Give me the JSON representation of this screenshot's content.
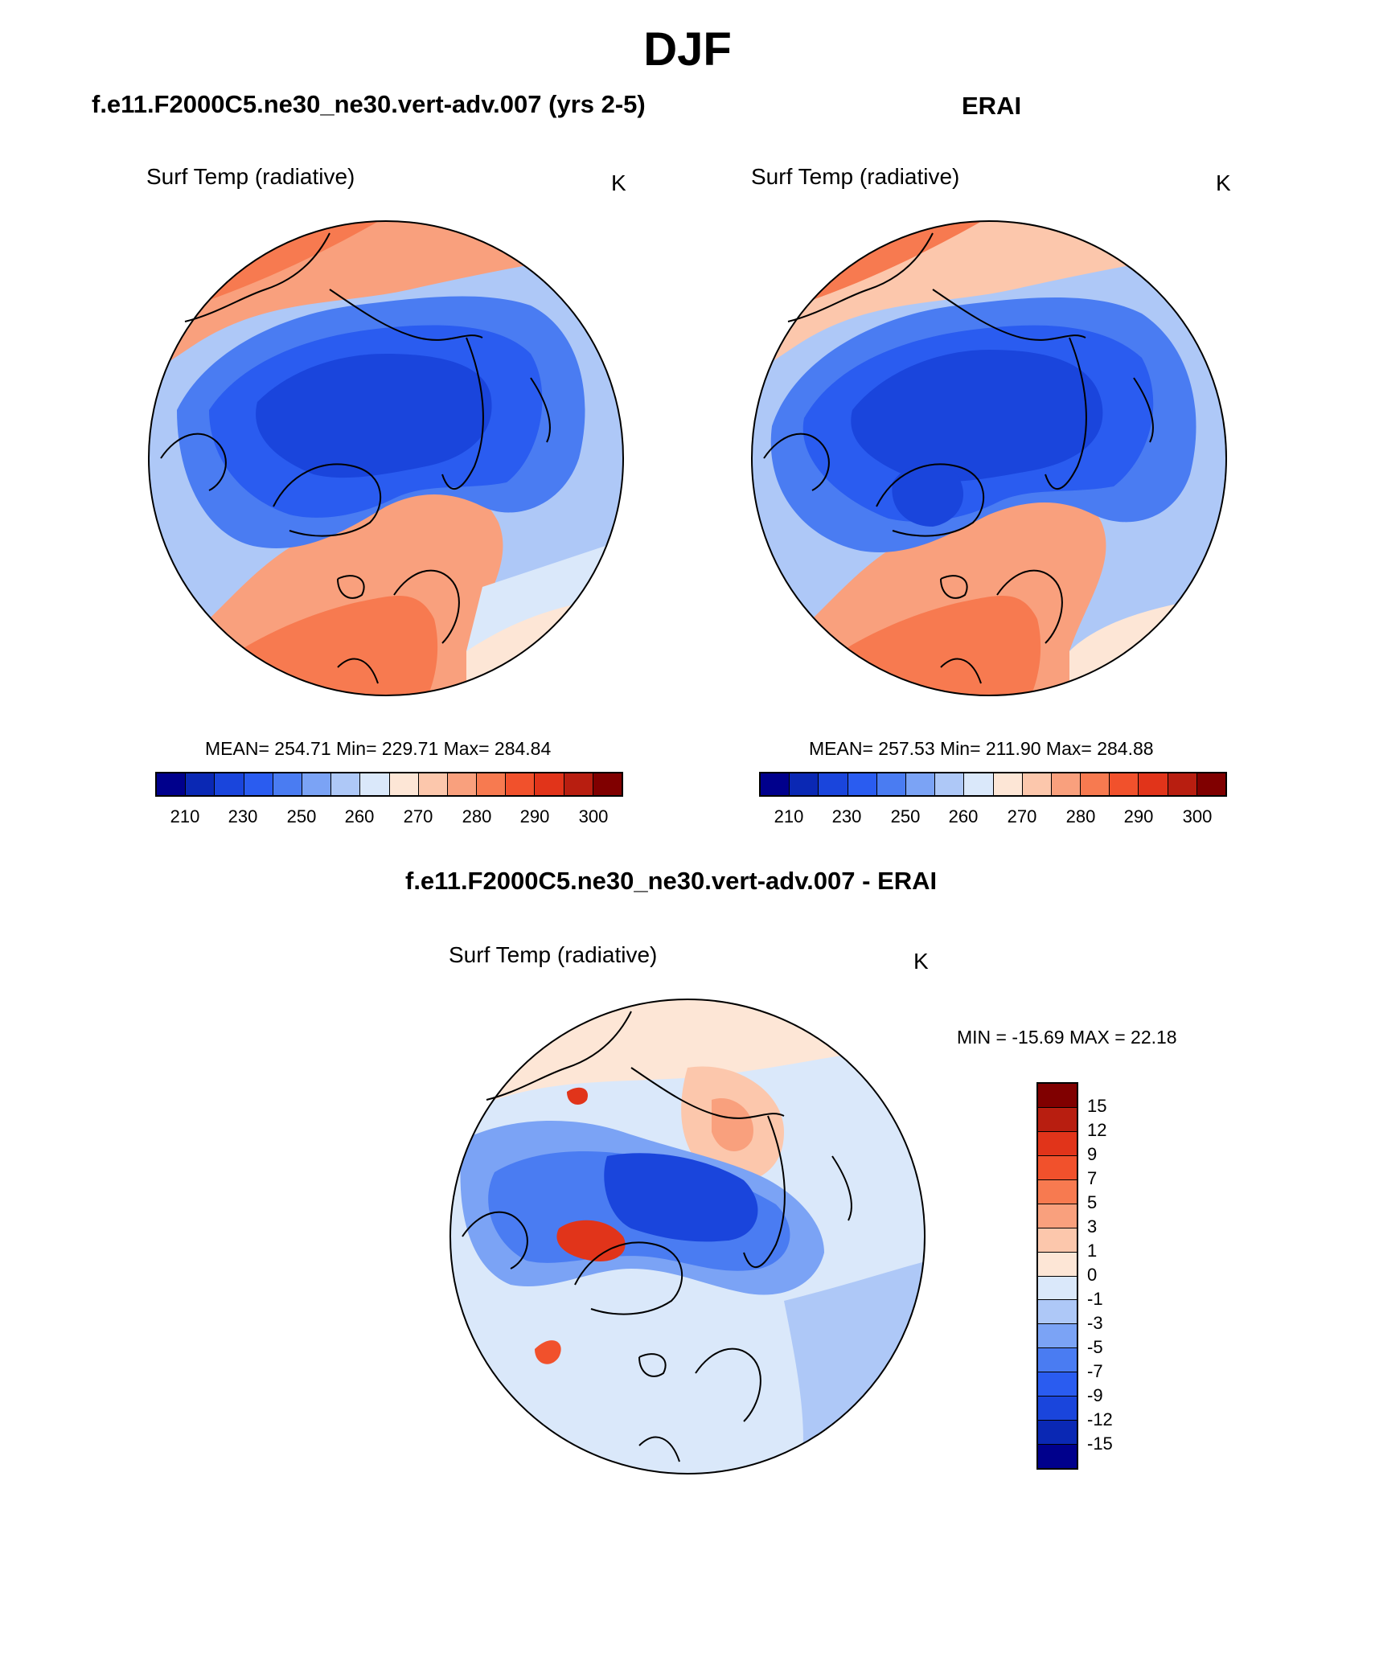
{
  "figure": {
    "title": "DJF"
  },
  "panels": {
    "model": {
      "title": "f.e11.F2000C5.ne30_ne30.vert-adv.007 (yrs 2-5)",
      "variable": "Surf Temp (radiative)",
      "units": "K",
      "stats": "MEAN= 254.71  Min= 229.71  Max= 284.84",
      "colorbar_ticks": [
        "210",
        "230",
        "250",
        "260",
        "270",
        "280",
        "290",
        "300"
      ],
      "map_description": "North polar stereographic map; cold blue over Arctic, Canada and Siberia, warm orange-red over North Atlantic and North Pacific"
    },
    "obs": {
      "title": "ERAI",
      "variable": "Surf Temp (radiative)",
      "units": "K",
      "stats": "MEAN= 257.53  Min= 211.90  Max= 284.88",
      "colorbar_ticks": [
        "210",
        "230",
        "250",
        "260",
        "270",
        "280",
        "290",
        "300"
      ]
    },
    "diff": {
      "title": "f.e11.F2000C5.ne30_ne30.vert-adv.007 - ERAI",
      "variable": "Surf Temp (radiative)",
      "units": "K",
      "stats": "MIN = -15.69 MAX =  22.18",
      "colorbar_ticks": [
        "15",
        "12",
        "9",
        "7",
        "5",
        "3",
        "1",
        "0",
        "-1",
        "-3",
        "-5",
        "-7",
        "-9",
        "-12",
        "-15"
      ]
    }
  },
  "colors": {
    "abs_scale": [
      "#00008c",
      "#0a28b4",
      "#1a45dc",
      "#2a5cf0",
      "#4a7cf2",
      "#7ba3f5",
      "#aec8f7",
      "#dae8fa",
      "#fde6d6",
      "#fcc7ac",
      "#f9a07d",
      "#f77a50",
      "#f1512c",
      "#e1341a",
      "#b81e10",
      "#800000"
    ],
    "diff_scale": [
      "#800000",
      "#b81e10",
      "#e1341a",
      "#f1512c",
      "#f77a50",
      "#f9a07d",
      "#fcc7ac",
      "#fde6d6",
      "#dae8fa",
      "#aec8f7",
      "#7ba3f5",
      "#4a7cf2",
      "#2a5cf0",
      "#1a45dc",
      "#0a28b4",
      "#00008c"
    ]
  }
}
